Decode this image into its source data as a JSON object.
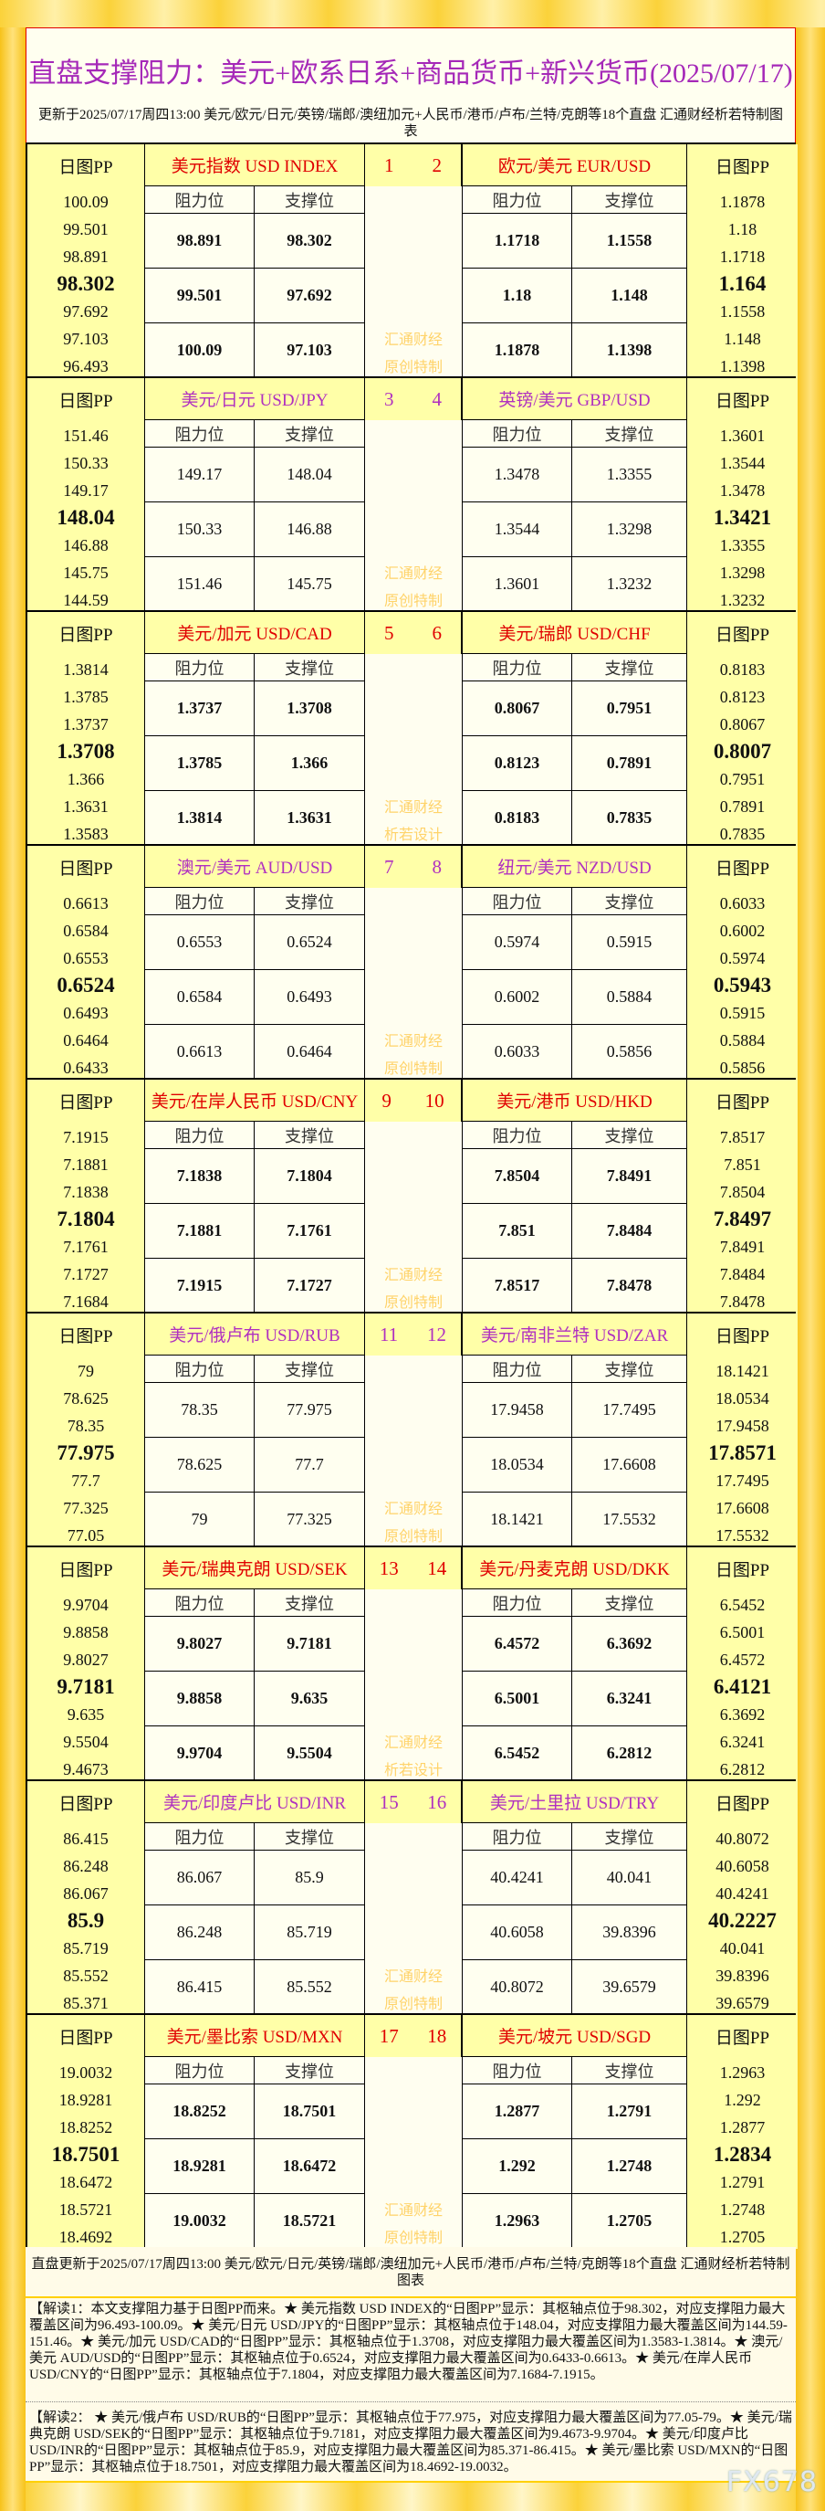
{
  "title": "直盘支撑阻力：美元+欧系日系+商品货币+新兴货币(2025/07/17)",
  "subtitle": "更新于2025/07/17周四13:00 美元/欧元/日元/英镑/瑞郎/澳纽加元+人民币/港币/卢布/兰特/克朗等18个直盘 汇通财经析若特制图表",
  "labels": {
    "pp": "日图PP",
    "resistance": "阻力位",
    "support": "支撑位"
  },
  "colors": {
    "red": "#e00000",
    "purple": "#b030c0",
    "pp_bg": "#ffffa8",
    "cell_bg": "#fffff0",
    "watermark": "#ffd36a"
  },
  "blocks": [
    {
      "style": "red",
      "nums": [
        "1",
        "2"
      ],
      "watermark": [
        "汇通财经",
        "原创特制"
      ],
      "left": {
        "name": "美元指数 USD INDEX",
        "pp": [
          "100.09",
          "99.501",
          "98.891",
          "98.302",
          "97.692",
          "97.103",
          "96.493"
        ],
        "rows": [
          [
            "98.891",
            "98.302"
          ],
          [
            "99.501",
            "97.692"
          ],
          [
            "100.09",
            "97.103"
          ]
        ]
      },
      "right": {
        "name": "欧元/美元 EUR/USD",
        "pp": [
          "1.1878",
          "1.18",
          "1.1718",
          "1.164",
          "1.1558",
          "1.148",
          "1.1398"
        ],
        "rows": [
          [
            "1.1718",
            "1.1558"
          ],
          [
            "1.18",
            "1.148"
          ],
          [
            "1.1878",
            "1.1398"
          ]
        ]
      }
    },
    {
      "style": "purple",
      "nums": [
        "3",
        "4"
      ],
      "watermark": [
        "汇通财经",
        "原创特制"
      ],
      "left": {
        "name": "美元/日元 USD/JPY",
        "pp": [
          "151.46",
          "150.33",
          "149.17",
          "148.04",
          "146.88",
          "145.75",
          "144.59"
        ],
        "rows": [
          [
            "149.17",
            "148.04"
          ],
          [
            "150.33",
            "146.88"
          ],
          [
            "151.46",
            "145.75"
          ]
        ]
      },
      "right": {
        "name": "英镑/美元 GBP/USD",
        "pp": [
          "1.3601",
          "1.3544",
          "1.3478",
          "1.3421",
          "1.3355",
          "1.3298",
          "1.3232"
        ],
        "rows": [
          [
            "1.3478",
            "1.3355"
          ],
          [
            "1.3544",
            "1.3298"
          ],
          [
            "1.3601",
            "1.3232"
          ]
        ]
      }
    },
    {
      "style": "red",
      "nums": [
        "5",
        "6"
      ],
      "watermark": [
        "汇通财经",
        "析若设计"
      ],
      "left": {
        "name": "美元/加元 USD/CAD",
        "pp": [
          "1.3814",
          "1.3785",
          "1.3737",
          "1.3708",
          "1.366",
          "1.3631",
          "1.3583"
        ],
        "rows": [
          [
            "1.3737",
            "1.3708"
          ],
          [
            "1.3785",
            "1.366"
          ],
          [
            "1.3814",
            "1.3631"
          ]
        ]
      },
      "right": {
        "name": "美元/瑞郎 USD/CHF",
        "pp": [
          "0.8183",
          "0.8123",
          "0.8067",
          "0.8007",
          "0.7951",
          "0.7891",
          "0.7835"
        ],
        "rows": [
          [
            "0.8067",
            "0.7951"
          ],
          [
            "0.8123",
            "0.7891"
          ],
          [
            "0.8183",
            "0.7835"
          ]
        ]
      }
    },
    {
      "style": "purple",
      "nums": [
        "7",
        "8"
      ],
      "watermark": [
        "汇通财经",
        "原创特制"
      ],
      "left": {
        "name": "澳元/美元 AUD/USD",
        "pp": [
          "0.6613",
          "0.6584",
          "0.6553",
          "0.6524",
          "0.6493",
          "0.6464",
          "0.6433"
        ],
        "rows": [
          [
            "0.6553",
            "0.6524"
          ],
          [
            "0.6584",
            "0.6493"
          ],
          [
            "0.6613",
            "0.6464"
          ]
        ]
      },
      "right": {
        "name": "纽元/美元 NZD/USD",
        "pp": [
          "0.6033",
          "0.6002",
          "0.5974",
          "0.5943",
          "0.5915",
          "0.5884",
          "0.5856"
        ],
        "rows": [
          [
            "0.5974",
            "0.5915"
          ],
          [
            "0.6002",
            "0.5884"
          ],
          [
            "0.6033",
            "0.5856"
          ]
        ]
      }
    },
    {
      "style": "red",
      "nums": [
        "9",
        "10"
      ],
      "watermark": [
        "汇通财经",
        "原创特制"
      ],
      "left": {
        "name": "美元/在岸人民币 USD/CNY",
        "pp": [
          "7.1915",
          "7.1881",
          "7.1838",
          "7.1804",
          "7.1761",
          "7.1727",
          "7.1684"
        ],
        "rows": [
          [
            "7.1838",
            "7.1804"
          ],
          [
            "7.1881",
            "7.1761"
          ],
          [
            "7.1915",
            "7.1727"
          ]
        ]
      },
      "right": {
        "name": "美元/港币 USD/HKD",
        "pp": [
          "7.8517",
          "7.851",
          "7.8504",
          "7.8497",
          "7.8491",
          "7.8484",
          "7.8478"
        ],
        "rows": [
          [
            "7.8504",
            "7.8491"
          ],
          [
            "7.851",
            "7.8484"
          ],
          [
            "7.8517",
            "7.8478"
          ]
        ]
      }
    },
    {
      "style": "purple",
      "nums": [
        "11",
        "12"
      ],
      "watermark": [
        "汇通财经",
        "原创特制"
      ],
      "left": {
        "name": "美元/俄卢布 USD/RUB",
        "pp": [
          "79",
          "78.625",
          "78.35",
          "77.975",
          "77.7",
          "77.325",
          "77.05"
        ],
        "rows": [
          [
            "78.35",
            "77.975"
          ],
          [
            "78.625",
            "77.7"
          ],
          [
            "79",
            "77.325"
          ]
        ]
      },
      "right": {
        "name": "美元/南非兰特 USD/ZAR",
        "pp": [
          "18.1421",
          "18.0534",
          "17.9458",
          "17.8571",
          "17.7495",
          "17.6608",
          "17.5532"
        ],
        "rows": [
          [
            "17.9458",
            "17.7495"
          ],
          [
            "18.0534",
            "17.6608"
          ],
          [
            "18.1421",
            "17.5532"
          ]
        ]
      }
    },
    {
      "style": "red",
      "nums": [
        "13",
        "14"
      ],
      "watermark": [
        "汇通财经",
        "析若设计"
      ],
      "left": {
        "name": "美元/瑞典克朗 USD/SEK",
        "pp": [
          "9.9704",
          "9.8858",
          "9.8027",
          "9.7181",
          "9.635",
          "9.5504",
          "9.4673"
        ],
        "rows": [
          [
            "9.8027",
            "9.7181"
          ],
          [
            "9.8858",
            "9.635"
          ],
          [
            "9.9704",
            "9.5504"
          ]
        ]
      },
      "right": {
        "name": "美元/丹麦克朗 USD/DKK",
        "pp": [
          "6.5452",
          "6.5001",
          "6.4572",
          "6.4121",
          "6.3692",
          "6.3241",
          "6.2812"
        ],
        "rows": [
          [
            "6.4572",
            "6.3692"
          ],
          [
            "6.5001",
            "6.3241"
          ],
          [
            "6.5452",
            "6.2812"
          ]
        ]
      }
    },
    {
      "style": "purple",
      "nums": [
        "15",
        "16"
      ],
      "watermark": [
        "汇通财经",
        "原创特制"
      ],
      "left": {
        "name": "美元/印度卢比 USD/INR",
        "pp": [
          "86.415",
          "86.248",
          "86.067",
          "85.9",
          "85.719",
          "85.552",
          "85.371"
        ],
        "rows": [
          [
            "86.067",
            "85.9"
          ],
          [
            "86.248",
            "85.719"
          ],
          [
            "86.415",
            "85.552"
          ]
        ]
      },
      "right": {
        "name": "美元/土里拉 USD/TRY",
        "pp": [
          "40.8072",
          "40.6058",
          "40.4241",
          "40.2227",
          "40.041",
          "39.8396",
          "39.6579"
        ],
        "rows": [
          [
            "40.4241",
            "40.041"
          ],
          [
            "40.6058",
            "39.8396"
          ],
          [
            "40.8072",
            "39.6579"
          ]
        ]
      }
    },
    {
      "style": "red",
      "nums": [
        "17",
        "18"
      ],
      "watermark": [
        "汇通财经",
        "原创特制"
      ],
      "left": {
        "name": "美元/墨比索 USD/MXN",
        "pp": [
          "19.0032",
          "18.9281",
          "18.8252",
          "18.7501",
          "18.6472",
          "18.5721",
          "18.4692"
        ],
        "rows": [
          [
            "18.8252",
            "18.7501"
          ],
          [
            "18.9281",
            "18.6472"
          ],
          [
            "19.0032",
            "18.5721"
          ]
        ]
      },
      "right": {
        "name": "美元/坡元 USD/SGD",
        "pp": [
          "1.2963",
          "1.292",
          "1.2877",
          "1.2834",
          "1.2791",
          "1.2748",
          "1.2705"
        ],
        "rows": [
          [
            "1.2877",
            "1.2791"
          ],
          [
            "1.292",
            "1.2748"
          ],
          [
            "1.2963",
            "1.2705"
          ]
        ]
      }
    }
  ],
  "footer": {
    "update": "直盘更新于2025/07/17周四13:00 美元/欧元/日元/英镑/瑞郎/澳纽加元+人民币/港币/卢布/兰特/克朗等18个直盘 汇通财经析若特制图表",
    "interp1": "【解读1：本文支撑阻力基于日图PP而来。★ 美元指数 USD INDEX的“日图PP”显示：其枢轴点位于98.302，对应支撑阻力最大覆盖区间为96.493-100.09。★ 美元/日元 USD/JPY的“日图PP”显示：其枢轴点位于148.04，对应支撑阻力最大覆盖区间为144.59-151.46。★ 美元/加元 USD/CAD的“日图PP”显示：其枢轴点位于1.3708，对应支撑阻力最大覆盖区间为1.3583-1.3814。★ 澳元/美元 AUD/USD的“日图PP”显示：其枢轴点位于0.6524，对应支撑阻力最大覆盖区间为0.6433-0.6613。★ 美元/在岸人民币 USD/CNY的“日图PP”显示：其枢轴点位于7.1804，对应支撑阻力最大覆盖区间为7.1684-7.1915。",
    "interp2": "【解读2： ★ 美元/俄卢布 USD/RUB的“日图PP”显示：其枢轴点位于77.975，对应支撑阻力最大覆盖区间为77.05-79。★ 美元/瑞典克朗 USD/SEK的“日图PP”显示：其枢轴点位于9.7181，对应支撑阻力最大覆盖区间为9.4673-9.9704。★ 美元/印度卢比 USD/INR的“日图PP”显示：其枢轴点位于85.9，对应支撑阻力最大覆盖区间为85.371-86.415。★ 美元/墨比索 USD/MXN的“日图PP”显示：其枢轴点位于18.7501，对应支撑阻力最大覆盖区间为18.4692-19.0032。"
  },
  "watermark_logo": "FX678"
}
